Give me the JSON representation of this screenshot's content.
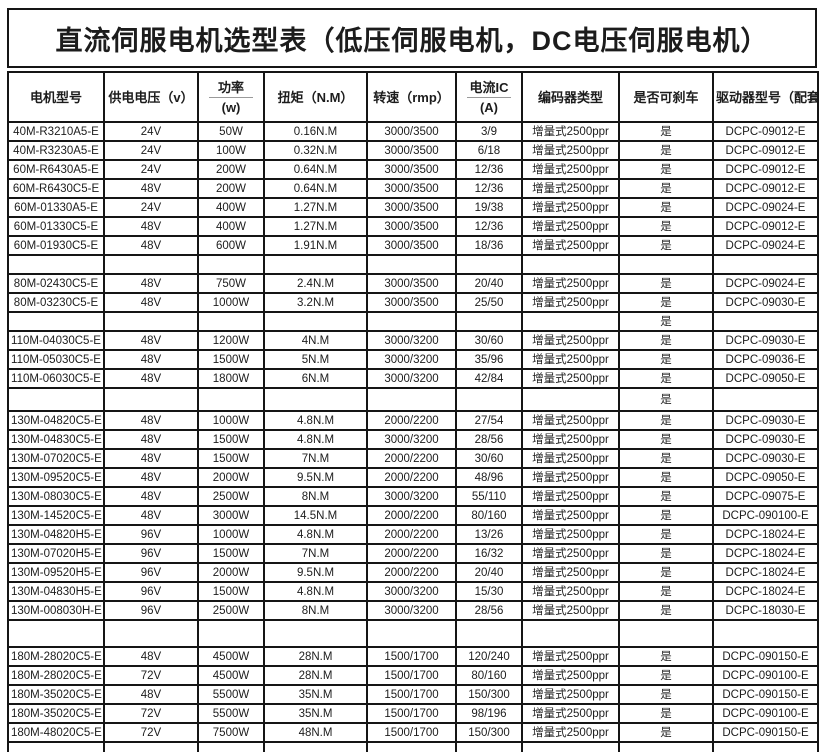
{
  "title": "直流伺服电机选型表（低压伺服电机，DC电压伺服电机）",
  "colors": {
    "border": "#151515",
    "text": "#1c1c1c",
    "background": "#ffffff"
  },
  "table": {
    "headers": [
      {
        "label": "电机型号",
        "sub": ""
      },
      {
        "label": "供电电压（v）",
        "sub": ""
      },
      {
        "label": "功率",
        "sub": "(w)"
      },
      {
        "label": "扭矩（N.M）",
        "sub": ""
      },
      {
        "label": "转速（rmp）",
        "sub": ""
      },
      {
        "label": "电流IC",
        "sub": "(A)"
      },
      {
        "label": "编码器类型",
        "sub": ""
      },
      {
        "label": "是否可刹车",
        "sub": ""
      },
      {
        "label": "驱动器型号（配套）",
        "sub": ""
      }
    ],
    "rows": [
      {
        "type": "data",
        "cells": [
          "40M-R3210A5-E",
          "24V",
          "50W",
          "0.16N.M",
          "3000/3500",
          "3/9",
          "增量式2500ppr",
          "是",
          "DCPC-09012-E"
        ]
      },
      {
        "type": "data",
        "cells": [
          "40M-R3230A5-E",
          "24V",
          "100W",
          "0.32N.M",
          "3000/3500",
          "6/18",
          "增量式2500ppr",
          "是",
          "DCPC-09012-E"
        ]
      },
      {
        "type": "data",
        "cells": [
          "60M-R6430A5-E",
          "24V",
          "200W",
          "0.64N.M",
          "3000/3500",
          "12/36",
          "增量式2500ppr",
          "是",
          "DCPC-09012-E"
        ]
      },
      {
        "type": "data",
        "cells": [
          "60M-R6430C5-E",
          "48V",
          "200W",
          "0.64N.M",
          "3000/3500",
          "12/36",
          "增量式2500ppr",
          "是",
          "DCPC-09012-E"
        ]
      },
      {
        "type": "data",
        "cells": [
          "60M-01330A5-E",
          "24V",
          "400W",
          "1.27N.M",
          "3000/3500",
          "19/38",
          "增量式2500ppr",
          "是",
          "DCPC-09024-E"
        ]
      },
      {
        "type": "data",
        "cells": [
          "60M-01330C5-E",
          "48V",
          "400W",
          "1.27N.M",
          "3000/3500",
          "12/36",
          "增量式2500ppr",
          "是",
          "DCPC-09012-E"
        ]
      },
      {
        "type": "data",
        "cells": [
          "60M-01930C5-E",
          "48V",
          "600W",
          "1.91N.M",
          "3000/3500",
          "18/36",
          "增量式2500ppr",
          "是",
          "DCPC-09024-E"
        ]
      },
      {
        "type": "spacer",
        "cells": [
          "",
          "",
          "",
          "",
          "",
          "",
          "",
          "",
          ""
        ]
      },
      {
        "type": "data",
        "cells": [
          "80M-02430C5-E",
          "48V",
          "750W",
          "2.4N.M",
          "3000/3500",
          "20/40",
          "增量式2500ppr",
          "是",
          "DCPC-09024-E"
        ]
      },
      {
        "type": "data",
        "cells": [
          "80M-03230C5-E",
          "48V",
          "1000W",
          "3.2N.M",
          "3000/3500",
          "25/50",
          "增量式2500ppr",
          "是",
          "DCPC-09030-E"
        ]
      },
      {
        "type": "spacer",
        "cells": [
          "",
          "",
          "",
          "",
          "",
          "",
          "",
          "是",
          ""
        ]
      },
      {
        "type": "data",
        "cells": [
          "110M-04030C5-E",
          "48V",
          "1200W",
          "4N.M",
          "3000/3200",
          "30/60",
          "增量式2500ppr",
          "是",
          "DCPC-09030-E"
        ]
      },
      {
        "type": "data",
        "cells": [
          "110M-05030C5-E",
          "48V",
          "1500W",
          "5N.M",
          "3000/3200",
          "35/96",
          "增量式2500ppr",
          "是",
          "DCPC-09036-E"
        ]
      },
      {
        "type": "data",
        "cells": [
          "110M-06030C5-E",
          "48V",
          "1800W",
          "6N.M",
          "3000/3200",
          "42/84",
          "增量式2500ppr",
          "是",
          "DCPC-09050-E"
        ]
      },
      {
        "type": "tall",
        "cells": [
          "",
          "",
          "",
          "",
          "",
          "",
          "",
          "是",
          ""
        ]
      },
      {
        "type": "data",
        "cells": [
          "130M-04820C5-E",
          "48V",
          "1000W",
          "4.8N.M",
          "2000/2200",
          "27/54",
          "增量式2500ppr",
          "是",
          "DCPC-09030-E"
        ]
      },
      {
        "type": "data",
        "cells": [
          "130M-04830C5-E",
          "48V",
          "1500W",
          "4.8N.M",
          "3000/3200",
          "28/56",
          "增量式2500ppr",
          "是",
          "DCPC-09030-E"
        ]
      },
      {
        "type": "data",
        "cells": [
          "130M-07020C5-E",
          "48V",
          "1500W",
          "7N.M",
          "2000/2200",
          "30/60",
          "增量式2500ppr",
          "是",
          "DCPC-09030-E"
        ]
      },
      {
        "type": "data",
        "cells": [
          "130M-09520C5-E",
          "48V",
          "2000W",
          "9.5N.M",
          "2000/2200",
          "48/96",
          "增量式2500ppr",
          "是",
          "DCPC-09050-E"
        ]
      },
      {
        "type": "data",
        "cells": [
          "130M-08030C5-E",
          "48V",
          "2500W",
          "8N.M",
          "3000/3200",
          "55/110",
          "增量式2500ppr",
          "是",
          "DCPC-09075-E"
        ]
      },
      {
        "type": "data",
        "cells": [
          "130M-14520C5-E",
          "48V",
          "3000W",
          "14.5N.M",
          "2000/2200",
          "80/160",
          "增量式2500ppr",
          "是",
          "DCPC-090100-E"
        ]
      },
      {
        "type": "data",
        "cells": [
          "130M-04820H5-E",
          "96V",
          "1000W",
          "4.8N.M",
          "2000/2200",
          "13/26",
          "增量式2500ppr",
          "是",
          "DCPC-18024-E"
        ]
      },
      {
        "type": "data",
        "cells": [
          "130M-07020H5-E",
          "96V",
          "1500W",
          "7N.M",
          "2000/2200",
          "16/32",
          "增量式2500ppr",
          "是",
          "DCPC-18024-E"
        ]
      },
      {
        "type": "data",
        "cells": [
          "130M-09520H5-E",
          "96V",
          "2000W",
          "9.5N.M",
          "2000/2200",
          "20/40",
          "增量式2500ppr",
          "是",
          "DCPC-18024-E"
        ]
      },
      {
        "type": "data",
        "cells": [
          "130M-04830H5-E",
          "96V",
          "1500W",
          "4.8N.M",
          "3000/3200",
          "15/30",
          "增量式2500ppr",
          "是",
          "DCPC-18024-E"
        ]
      },
      {
        "type": "data",
        "cells": [
          "130M-008030H-E",
          "96V",
          "2500W",
          "8N.M",
          "3000/3200",
          "28/56",
          "增量式2500ppr",
          "是",
          "DCPC-18030-E"
        ]
      },
      {
        "type": "tall2",
        "cells": [
          "",
          "",
          "",
          "",
          "",
          "",
          "",
          "",
          ""
        ]
      },
      {
        "type": "data",
        "cells": [
          "180M-28020C5-E",
          "48V",
          "4500W",
          "28N.M",
          "1500/1700",
          "120/240",
          "增量式2500ppr",
          "是",
          "DCPC-090150-E"
        ]
      },
      {
        "type": "data",
        "cells": [
          "180M-28020C5-E",
          "72V",
          "4500W",
          "28N.M",
          "1500/1700",
          "80/160",
          "增量式2500ppr",
          "是",
          "DCPC-090100-E"
        ]
      },
      {
        "type": "data",
        "cells": [
          "180M-35020C5-E",
          "48V",
          "5500W",
          "35N.M",
          "1500/1700",
          "150/300",
          "增量式2500ppr",
          "是",
          "DCPC-090150-E"
        ]
      },
      {
        "type": "data",
        "cells": [
          "180M-35020C5-E",
          "72V",
          "5500W",
          "35N.M",
          "1500/1700",
          "98/196",
          "增量式2500ppr",
          "是",
          "DCPC-090100-E"
        ]
      },
      {
        "type": "data",
        "cells": [
          "180M-48020C5-E",
          "72V",
          "7500W",
          "48N.M",
          "1500/1700",
          "150/300",
          "增量式2500ppr",
          "是",
          "DCPC-090150-E"
        ]
      },
      {
        "type": "bottom",
        "cells": [
          "",
          "",
          "",
          "",
          "",
          "",
          "",
          "",
          ""
        ]
      }
    ]
  }
}
